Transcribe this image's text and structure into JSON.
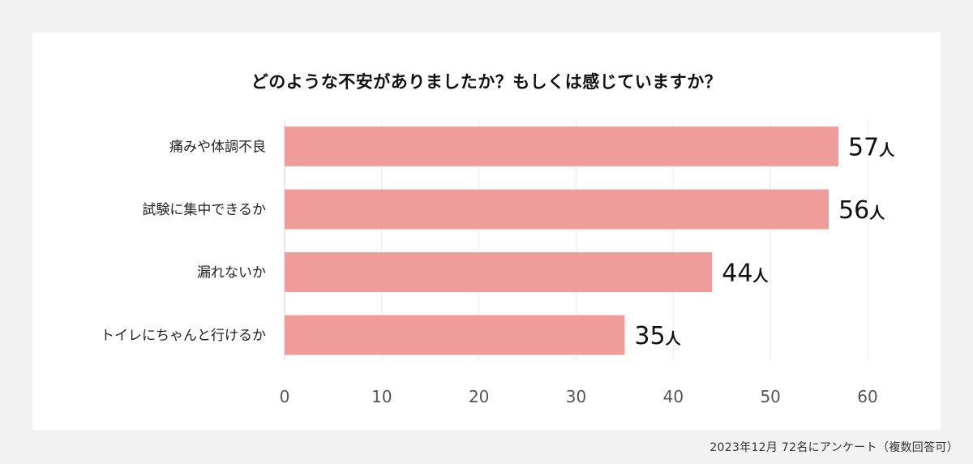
{
  "chart_data": {
    "type": "bar",
    "orientation": "horizontal",
    "title": "どのような不安がありましたか？もしくは感じていますか？",
    "categories": [
      "痛みや体調不良",
      "試験に集中できるか",
      "漏れないか",
      "トイレにちゃんと行けるか"
    ],
    "values": [
      57,
      56,
      44,
      35
    ],
    "value_unit": "人",
    "xlim": [
      0,
      60
    ],
    "xticks": [
      0,
      10,
      20,
      30,
      40,
      50,
      60
    ],
    "xlabel": "",
    "ylabel": "",
    "grid": true,
    "bar_color": "#f09c9a"
  },
  "footnote": "2023年12月  72名にアンケート（複数回答可）"
}
